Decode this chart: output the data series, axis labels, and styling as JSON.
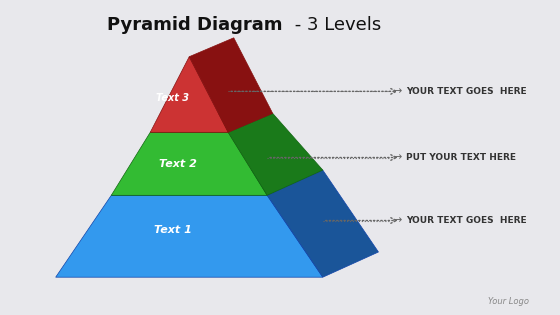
{
  "title": "Pyramid Diagram",
  "title_bold": true,
  "subtitle": " - 3 Levels",
  "background_color": "#e8e8ec",
  "levels": [
    {
      "label": "Text 1",
      "annotation": "YOUR TEXT GOES  HERE",
      "face_color": "#3399ff",
      "side_color": "#1a66cc",
      "dark_color": "#003399"
    },
    {
      "label": "Text 2",
      "annotation": "PUT YOUR TEXT HERE",
      "face_color": "#33cc33",
      "side_color": "#228822",
      "dark_color": "#006600"
    },
    {
      "label": "Text 3",
      "annotation": "YOUR TEXT GOES  HERE",
      "face_color": "#cc2222",
      "side_color": "#991111",
      "dark_color": "#660000"
    }
  ],
  "annotation_color": "#333333",
  "label_color": "#ffffff",
  "logo_text": "Your Logo",
  "arrow_color": "#666666"
}
